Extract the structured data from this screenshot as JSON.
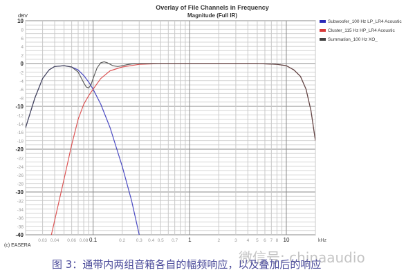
{
  "chart_data": {
    "type": "line",
    "title": "Overlay of File Channels in Frequency",
    "subtitle": "Magnitude (Full IR)",
    "ylabel": "dBV",
    "xlabel": "kHz",
    "xscale": "log",
    "xlim": [
      0.02,
      20
    ],
    "ylim": [
      -40,
      10
    ],
    "grid": true,
    "legend_position": "right",
    "yticks": [
      10,
      8,
      6,
      4,
      2,
      0,
      -2,
      -4,
      -6,
      -8,
      -10,
      -12,
      -14,
      -16,
      -18,
      -20,
      -22,
      -24,
      -26,
      -28,
      -30,
      -32,
      -34,
      -36,
      -38,
      -40
    ],
    "yticks_major": [
      10,
      0,
      -10,
      -20,
      -30,
      -40
    ],
    "xticks": [
      0.03,
      0.04,
      0.06,
      0.08,
      0.1,
      0.2,
      0.3,
      0.4,
      0.5,
      0.7,
      1,
      2,
      3,
      4,
      5,
      6,
      7,
      8,
      10
    ],
    "xtick_labels": [
      "0.03",
      "0.04",
      "0.06",
      "0.08",
      "0.1",
      "0.2",
      "0.3",
      "0.4",
      "0.5",
      "0.7",
      "1",
      "2",
      "3",
      "4",
      "5",
      "6",
      "7",
      "8",
      "10"
    ],
    "series": [
      {
        "name": "Subwoofer_100 Hz LP_LR4 Acoustic",
        "color": "#2a2ab8",
        "x": [
          0.02,
          0.025,
          0.03,
          0.035,
          0.04,
          0.05,
          0.06,
          0.07,
          0.08,
          0.09,
          0.1,
          0.12,
          0.15,
          0.2,
          0.25,
          0.3
        ],
        "y": [
          -15,
          -8,
          -3.5,
          -1.5,
          -0.7,
          -0.5,
          -0.8,
          -1.5,
          -2.8,
          -4.3,
          -6,
          -9.5,
          -15,
          -24,
          -32,
          -40
        ]
      },
      {
        "name": "Cluster_115 Hz HP_LR4 Acoustic",
        "color": "#d83a3a",
        "x": [
          0.037,
          0.05,
          0.06,
          0.07,
          0.08,
          0.09,
          0.1,
          0.12,
          0.15,
          0.2,
          0.3,
          0.5,
          1,
          5,
          8,
          10,
          12,
          14,
          16,
          18,
          20
        ],
        "y": [
          -40,
          -27,
          -19,
          -13,
          -9.5,
          -7.5,
          -6,
          -3.5,
          -1.7,
          -0.8,
          -0.2,
          0,
          0,
          0,
          -0.2,
          -0.5,
          -1.5,
          -3,
          -6,
          -11,
          -18
        ]
      },
      {
        "name": "Summation_100 Hz XO_",
        "color": "#444444",
        "x": [
          0.02,
          0.025,
          0.03,
          0.035,
          0.04,
          0.05,
          0.06,
          0.07,
          0.08,
          0.085,
          0.09,
          0.095,
          0.1,
          0.11,
          0.12,
          0.13,
          0.14,
          0.16,
          0.18,
          0.2,
          0.22,
          0.25,
          0.3,
          0.5,
          1,
          5,
          8,
          10,
          12,
          14,
          16,
          18,
          20
        ],
        "y": [
          -15,
          -8,
          -3.5,
          -1.5,
          -0.7,
          -0.5,
          -0.8,
          -2,
          -4.5,
          -5.5,
          -5.7,
          -5,
          -3.5,
          -1,
          0.2,
          0.4,
          0.2,
          -0.5,
          -0.7,
          -0.5,
          -0.3,
          -0.1,
          0,
          0,
          0,
          0,
          -0.2,
          -0.5,
          -1.5,
          -3,
          -6,
          -11,
          -18
        ]
      }
    ]
  },
  "copyright": "(c) EASERA",
  "caption": "图 3：通带内两组音箱各自的幅频响应，以及叠加后的响应",
  "watermark": "微信号: chinaaudio"
}
